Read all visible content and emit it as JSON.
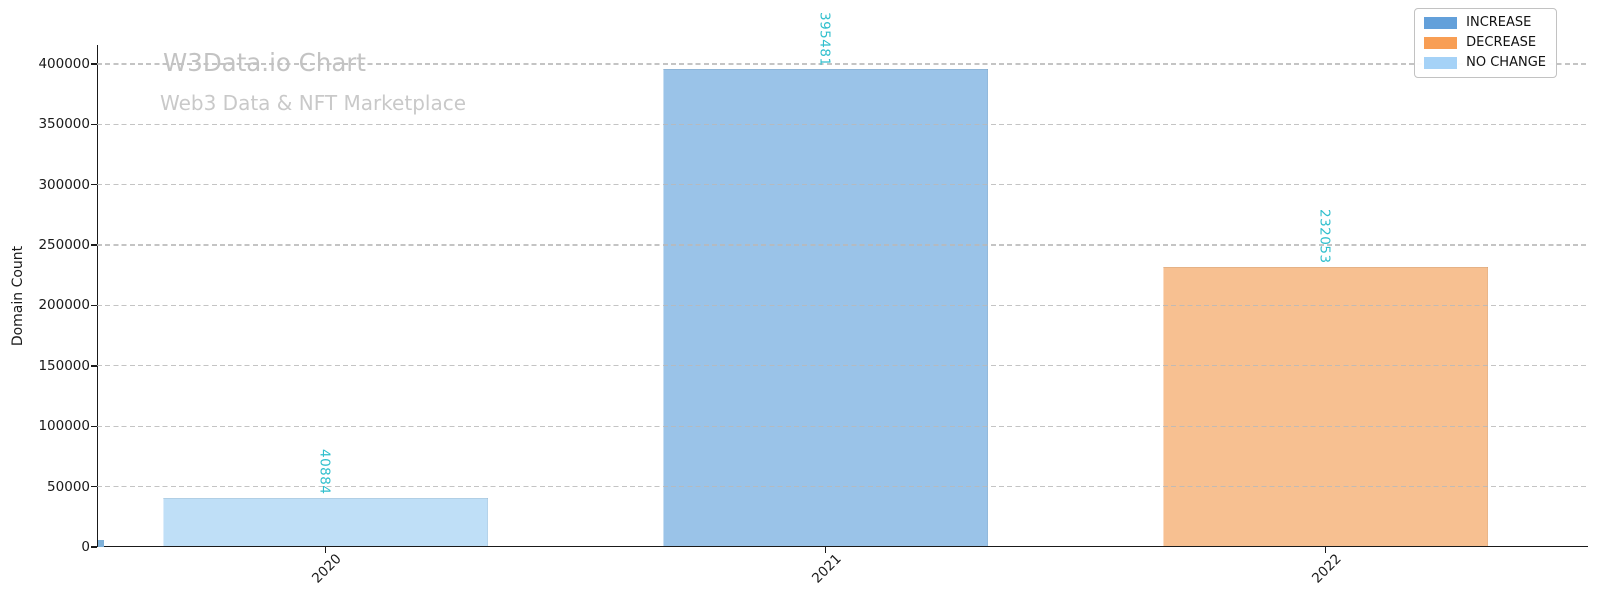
{
  "watermark": {
    "title": "W3Data.io Chart",
    "subtitle": "Web3 Data & NFT Marketplace"
  },
  "chart_data": {
    "type": "bar",
    "title": "",
    "xlabel": "",
    "ylabel": "Domain Count",
    "categories": [
      "2020",
      "2021",
      "2022"
    ],
    "values": [
      40884,
      395481,
      232053
    ],
    "value_labels": [
      "40884",
      "395481",
      "232053"
    ],
    "bar_status": [
      "NO CHANGE",
      "INCREASE",
      "DECREASE"
    ],
    "bar_colors": [
      "#bfdff7",
      "#9ac3e8",
      "#f7c091"
    ],
    "value_label_color": "#30bfcd",
    "yticks": [
      0,
      50000,
      100000,
      150000,
      200000,
      250000,
      300000,
      350000,
      400000
    ],
    "ylim": [
      0,
      415700
    ],
    "grid": {
      "axis": "y",
      "style": "dashed",
      "color": "#b9b9b9"
    },
    "legend": {
      "position": "upper right",
      "items": [
        {
          "label": "INCREASE",
          "color": "#63a0da"
        },
        {
          "label": "DECREASE",
          "color": "#f89e54"
        },
        {
          "label": "NO CHANGE",
          "color": "#a5d2f7"
        }
      ]
    }
  }
}
